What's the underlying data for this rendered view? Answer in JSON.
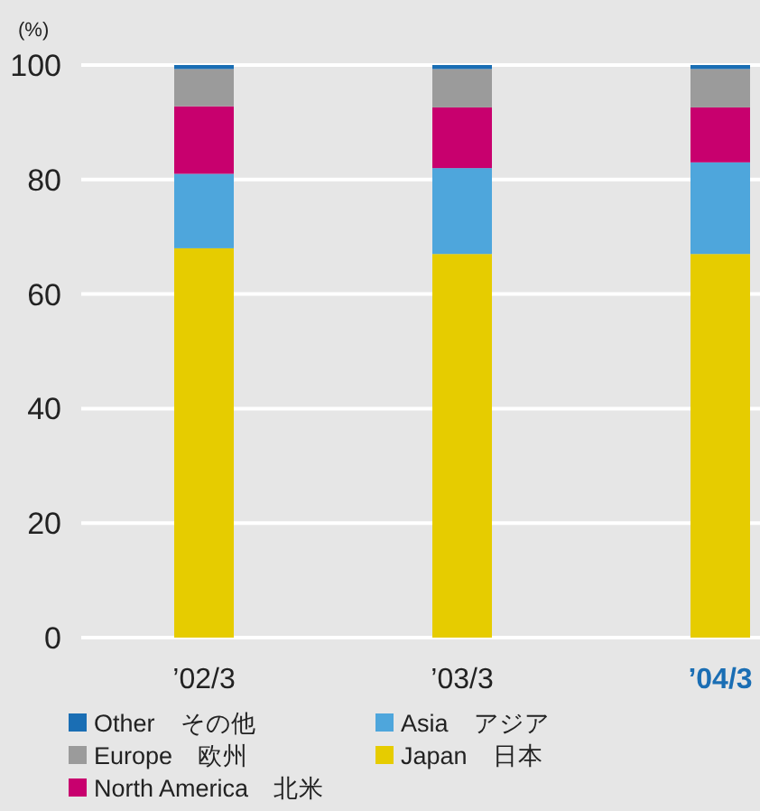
{
  "chart_data": {
    "type": "bar",
    "stacked": true,
    "ylabel": "(%)",
    "categories": [
      "’02/3",
      "’03/3",
      "’04/3"
    ],
    "series": [
      {
        "name": "Japan　日本",
        "color": "#e6cc00",
        "values": [
          68,
          67,
          67
        ]
      },
      {
        "name": "Asia　アジア",
        "color": "#4ea6dc",
        "values": [
          13,
          15,
          16
        ]
      },
      {
        "name": "North America　北米",
        "color": "#c8006e",
        "values": [
          11.8,
          10.6,
          9.6
        ]
      },
      {
        "name": "Europe　欧州",
        "color": "#9b9b9b",
        "values": [
          6.5,
          6.7,
          6.7
        ]
      },
      {
        "name": "Other　その他",
        "color": "#1a6eb4",
        "values": [
          0.7,
          0.7,
          0.7
        ]
      }
    ],
    "ylim": [
      0,
      100
    ],
    "yticks": [
      0,
      20,
      40,
      60,
      80,
      100
    ],
    "grid": "y",
    "legend": "bottom"
  }
}
